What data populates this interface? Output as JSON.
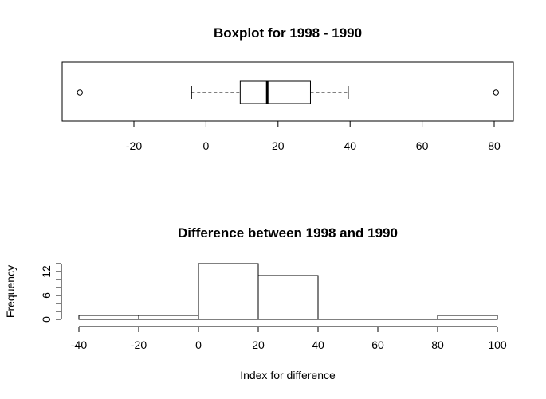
{
  "chart_data": [
    {
      "type": "boxplot",
      "title": "Boxplot for 1998 - 1990",
      "orientation": "horizontal",
      "stats": {
        "whisker_low": -4,
        "q1": 9.5,
        "median": 17,
        "q3": 29,
        "whisker_high": 39.5
      },
      "outliers": [
        -35,
        80.5
      ],
      "xlim": [
        -40,
        85
      ],
      "xticks": [
        -20,
        0,
        20,
        40,
        60,
        80
      ],
      "xlabel": "",
      "ylabel": ""
    },
    {
      "type": "histogram",
      "title": "Difference between 1998 and 1990",
      "bins": [
        {
          "from": -40,
          "to": -20,
          "count": 1
        },
        {
          "from": -20,
          "to": 0,
          "count": 1
        },
        {
          "from": 0,
          "to": 20,
          "count": 14
        },
        {
          "from": 20,
          "to": 40,
          "count": 11
        },
        {
          "from": 40,
          "to": 60,
          "count": 0
        },
        {
          "from": 60,
          "to": 80,
          "count": 0
        },
        {
          "from": 80,
          "to": 100,
          "count": 1
        }
      ],
      "xlim": [
        -40,
        100
      ],
      "xticks": [
        -40,
        -20,
        0,
        20,
        40,
        60,
        80,
        100
      ],
      "ylim": [
        0,
        14
      ],
      "yticks": [
        0,
        6,
        12
      ],
      "xlabel": "Index for difference",
      "ylabel": "Frequency"
    }
  ]
}
